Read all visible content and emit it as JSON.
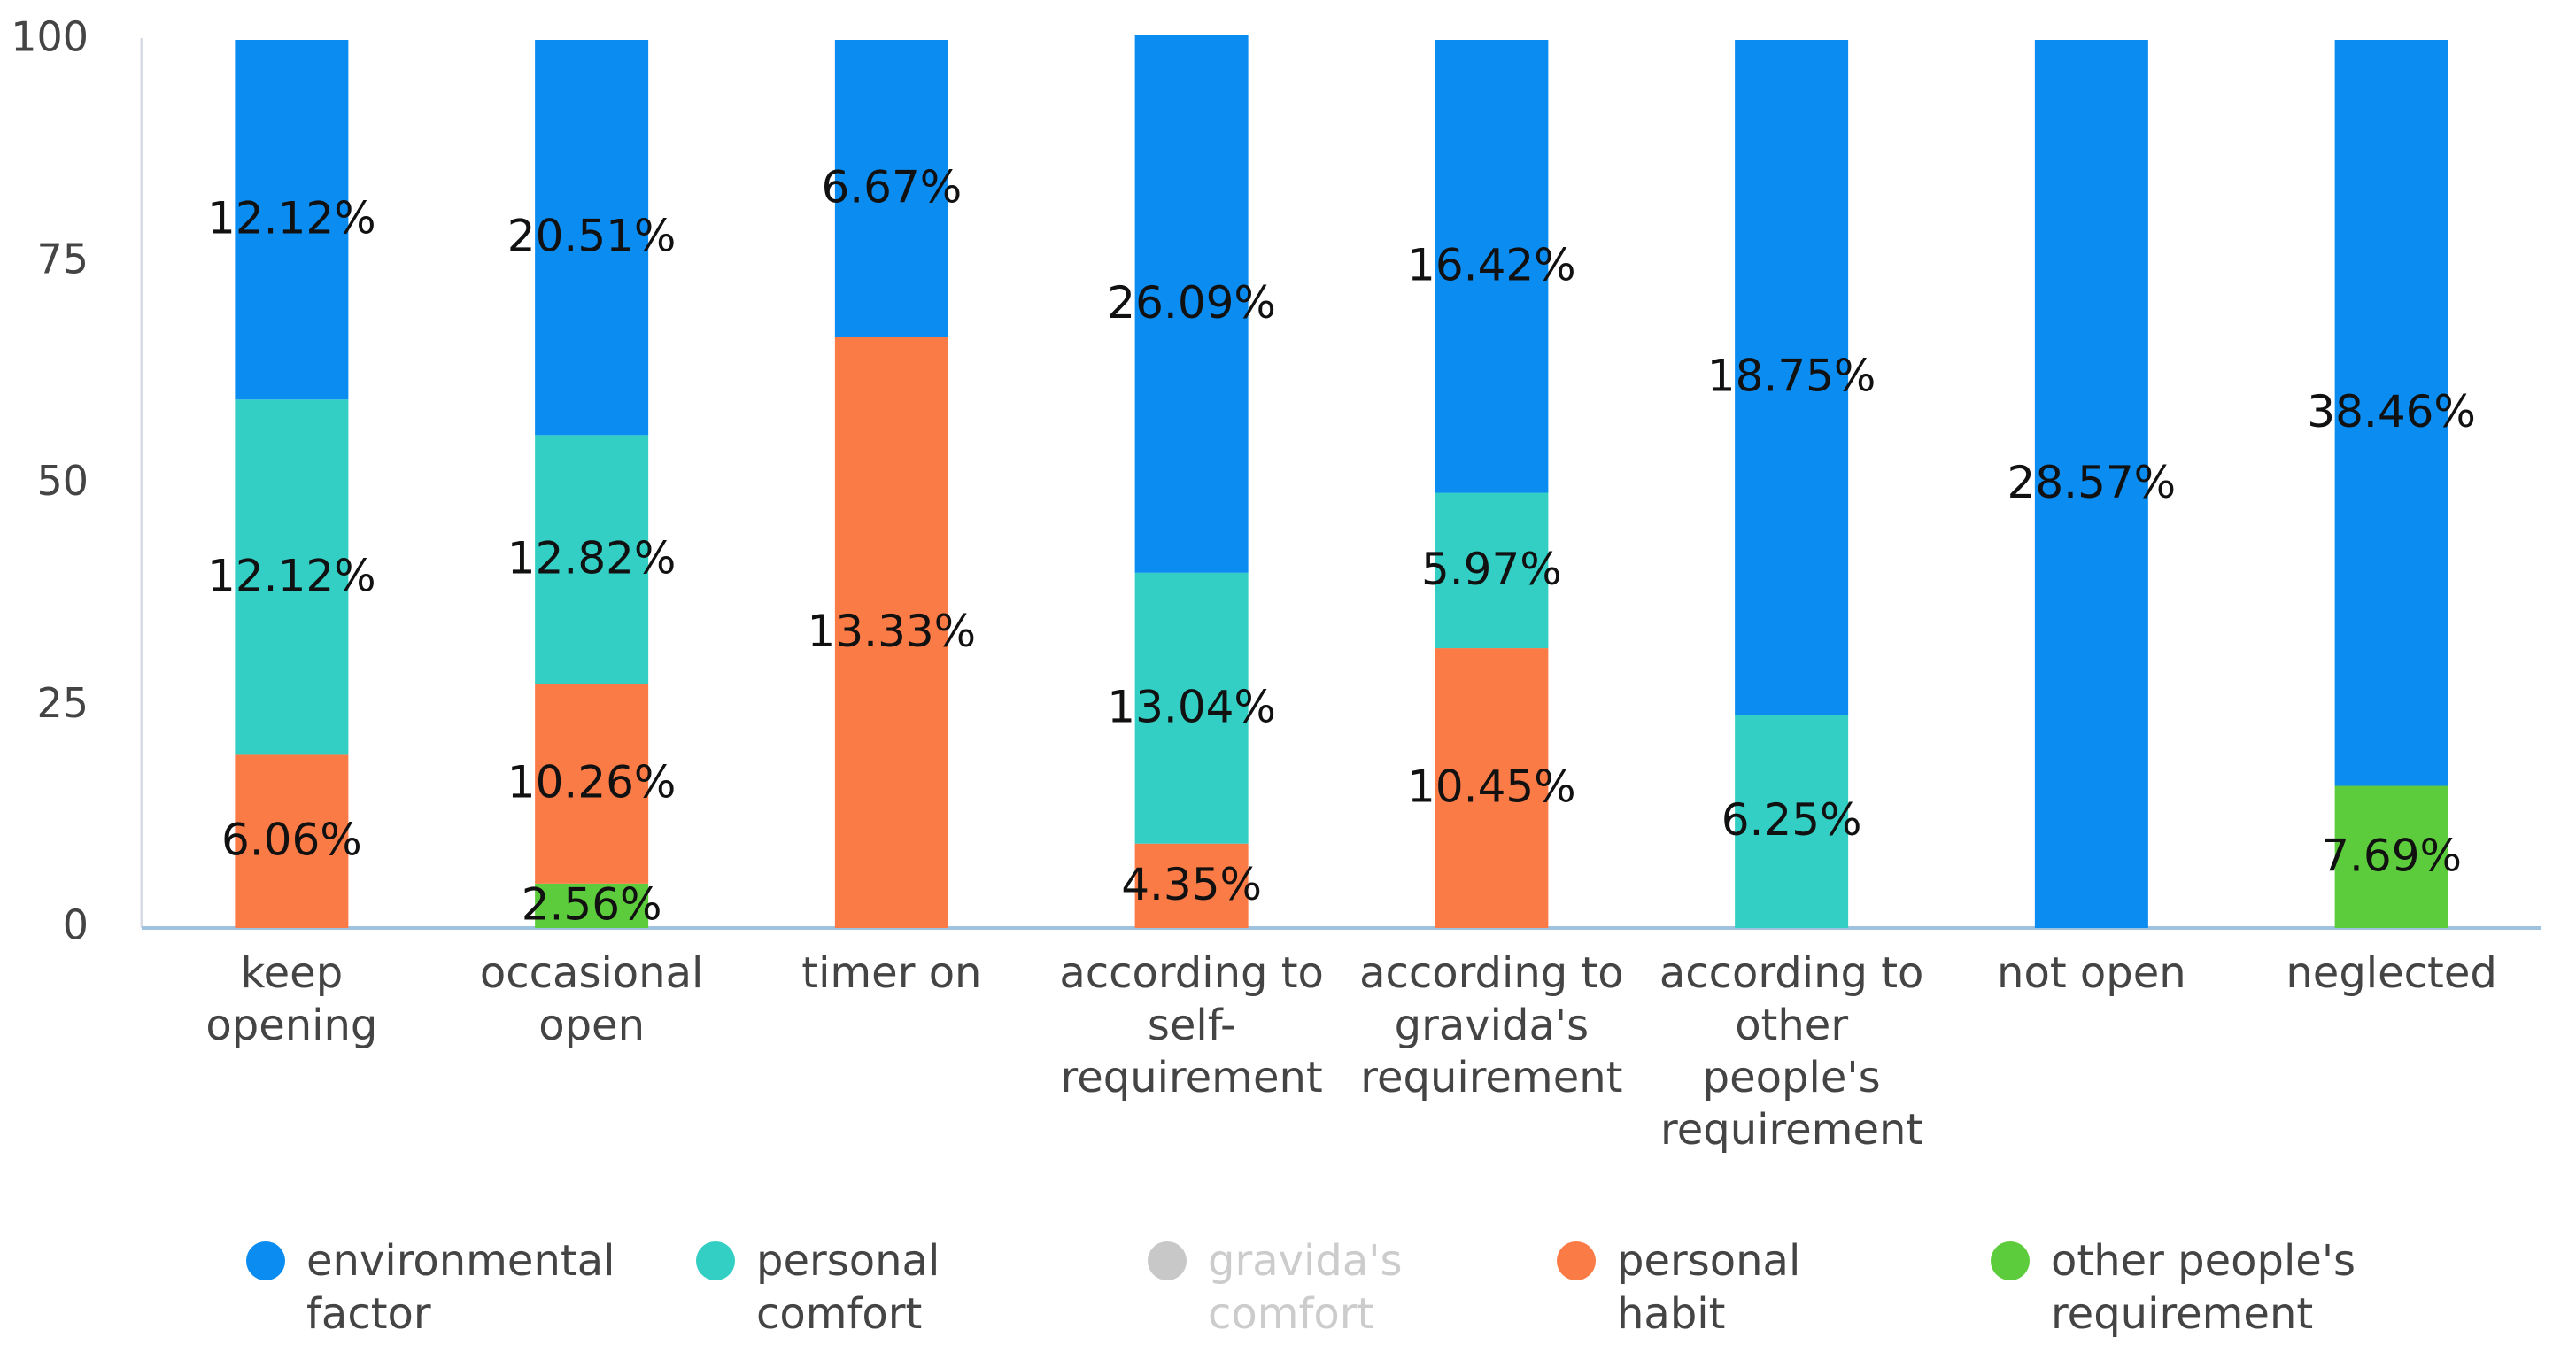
{
  "chart_data": {
    "type": "bar",
    "stacked": true,
    "title": "",
    "xlabel": "",
    "ylabel": "",
    "ylim": [
      0,
      100
    ],
    "yticks": [
      0,
      25,
      50,
      75,
      100
    ],
    "grid": false,
    "legend_position": "bottom",
    "categories": [
      [
        "keep",
        "opening"
      ],
      [
        "occasional",
        "open"
      ],
      [
        "timer on"
      ],
      [
        "according to",
        "self-",
        "requirement"
      ],
      [
        "according to",
        "gravida's",
        "requirement"
      ],
      [
        "according to",
        "other",
        "people's",
        "requirement"
      ],
      [
        "not open"
      ],
      [
        "neglected"
      ]
    ],
    "series": [
      {
        "name": "environmental factor",
        "legend": [
          "environmental",
          "factor"
        ],
        "color": "#0b8cf0",
        "muted": false,
        "values": [
          40.5,
          44.5,
          33.5,
          60.5,
          51,
          76,
          100,
          84
        ],
        "labels": [
          "12.12%",
          "20.51%",
          "6.67%",
          "26.09%",
          "16.42%",
          "18.75%",
          "28.57%",
          "38.46%"
        ]
      },
      {
        "name": "personal comfort",
        "legend": [
          "personal",
          "comfort"
        ],
        "color": "#33cfc5",
        "muted": false,
        "values": [
          40,
          28,
          0,
          30.5,
          17.5,
          24,
          0,
          0
        ],
        "labels": [
          "12.12%",
          "12.82%",
          "",
          "13.04%",
          "5.97%",
          "6.25%",
          "",
          ""
        ]
      },
      {
        "name": "gravida's comfort",
        "legend": [
          "gravida's",
          "comfort"
        ],
        "color": "#c8c8c8",
        "muted": true,
        "values": [
          0,
          0,
          0,
          0,
          0,
          0,
          0,
          0
        ],
        "labels": [
          "",
          "",
          "",
          "",
          "",
          "",
          "",
          ""
        ]
      },
      {
        "name": "personal habit",
        "legend": [
          "personal",
          "habit"
        ],
        "color": "#fb7b47",
        "muted": false,
        "values": [
          19.5,
          22.5,
          66.5,
          9.5,
          31.5,
          0,
          0,
          0
        ],
        "labels": [
          "6.06%",
          "10.26%",
          "13.33%",
          "4.35%",
          "10.45%",
          "",
          "",
          ""
        ]
      },
      {
        "name": "other people's requirement",
        "legend": [
          "other people's",
          "requirement"
        ],
        "color": "#5ccc3c",
        "muted": false,
        "values": [
          0,
          5,
          0,
          0,
          0,
          0,
          0,
          16
        ],
        "labels": [
          "",
          "2.56%",
          "",
          "",
          "",
          "",
          "",
          "7.69%"
        ]
      }
    ],
    "stack_order_bottom_to_top": [
      "other people's requirement",
      "personal habit",
      "gravida's comfort",
      "personal comfort",
      "environmental factor"
    ]
  }
}
